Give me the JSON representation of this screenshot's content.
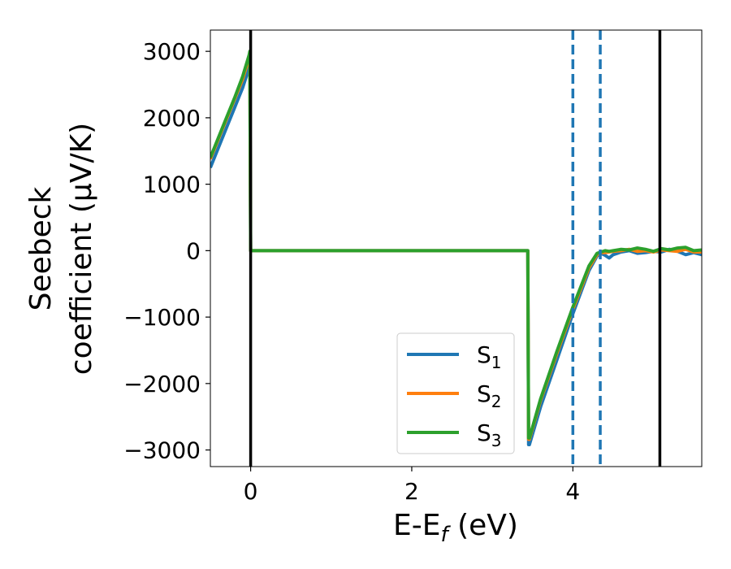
{
  "chart_data": {
    "type": "line",
    "xlabel_main": "E-E",
    "xlabel_sub": "f",
    "xlabel_tail": " (eV)",
    "ylabel_line1": "Seebeck",
    "ylabel_line2": "coefficient  (μV/K)",
    "xlim": [
      -0.5,
      5.6
    ],
    "ylim": [
      -3250,
      3320
    ],
    "xticks": [
      0,
      2,
      4
    ],
    "xtick_labels": [
      "0",
      "2",
      "4"
    ],
    "yticks": [
      3000,
      2000,
      1000,
      0,
      -1000,
      -2000,
      -3000
    ],
    "ytick_labels": [
      "3000",
      "2000",
      "1000",
      "0",
      "−1000",
      "−2000",
      "−3000"
    ],
    "grid": false,
    "legend_placement": "lower-center",
    "vertical_lines": [
      {
        "x": 0,
        "style": "solid",
        "color": "#000000"
      },
      {
        "x": 5.08,
        "style": "solid",
        "color": "#000000"
      },
      {
        "x": 4.0,
        "style": "dashed",
        "color": "#1f77b4"
      },
      {
        "x": 4.34,
        "style": "dashed",
        "color": "#1f77b4"
      }
    ],
    "series": [
      {
        "name_main": "S",
        "name_sub": "1",
        "color": "#1f77b4",
        "x": [
          -0.5,
          -0.4,
          -0.3,
          -0.2,
          -0.1,
          -0.02,
          -0.01,
          0.0,
          1.0,
          2.0,
          3.0,
          3.44,
          3.45,
          3.46,
          3.6,
          3.8,
          4.0,
          4.2,
          4.3,
          4.35,
          4.4,
          4.45,
          4.5,
          4.6,
          4.7,
          4.8,
          4.9,
          5.0,
          5.1,
          5.2,
          5.3,
          5.4,
          5.5,
          5.6
        ],
        "y": [
          1250,
          1550,
          1850,
          2150,
          2450,
          2750,
          2800,
          0,
          0,
          0,
          0,
          0,
          -2920,
          -2920,
          -2350,
          -1650,
          -950,
          -300,
          -80,
          -40,
          -70,
          -110,
          -60,
          -20,
          0,
          -40,
          -30,
          -10,
          -20,
          20,
          -10,
          -60,
          -30,
          -60
        ]
      },
      {
        "name_main": "S",
        "name_sub": "2",
        "color": "#ff7f0e",
        "x": [
          -0.5,
          -0.4,
          -0.3,
          -0.2,
          -0.1,
          -0.02,
          -0.01,
          0.0,
          1.0,
          2.0,
          3.0,
          3.44,
          3.45,
          3.46,
          3.6,
          3.8,
          4.0,
          4.2,
          4.3,
          4.35,
          4.4,
          4.45,
          4.5,
          4.6,
          4.7,
          4.8,
          4.9,
          5.0,
          5.1,
          5.2,
          5.3,
          5.4,
          5.5,
          5.6
        ],
        "y": [
          1380,
          1680,
          1980,
          2280,
          2580,
          2900,
          2960,
          0,
          0,
          0,
          0,
          0,
          -2840,
          -2840,
          -2250,
          -1550,
          -880,
          -260,
          -60,
          -30,
          -30,
          -20,
          -10,
          0,
          20,
          -10,
          0,
          -20,
          10,
          0,
          -10,
          20,
          -20,
          -20
        ]
      },
      {
        "name_main": "S",
        "name_sub": "3",
        "color": "#2ca02c",
        "x": [
          -0.5,
          -0.4,
          -0.3,
          -0.2,
          -0.1,
          -0.02,
          -0.01,
          0.0,
          1.0,
          2.0,
          3.0,
          3.44,
          3.45,
          3.46,
          3.6,
          3.8,
          4.0,
          4.2,
          4.3,
          4.35,
          4.4,
          4.45,
          4.5,
          4.6,
          4.7,
          4.8,
          4.9,
          5.0,
          5.1,
          5.2,
          5.3,
          5.4,
          5.5,
          5.6
        ],
        "y": [
          1400,
          1700,
          2000,
          2300,
          2620,
          2940,
          3000,
          0,
          0,
          0,
          0,
          0,
          -2820,
          -2820,
          -2230,
          -1520,
          -850,
          -230,
          -40,
          -20,
          0,
          -10,
          0,
          20,
          10,
          40,
          20,
          -10,
          30,
          10,
          40,
          50,
          0,
          10
        ]
      }
    ]
  }
}
